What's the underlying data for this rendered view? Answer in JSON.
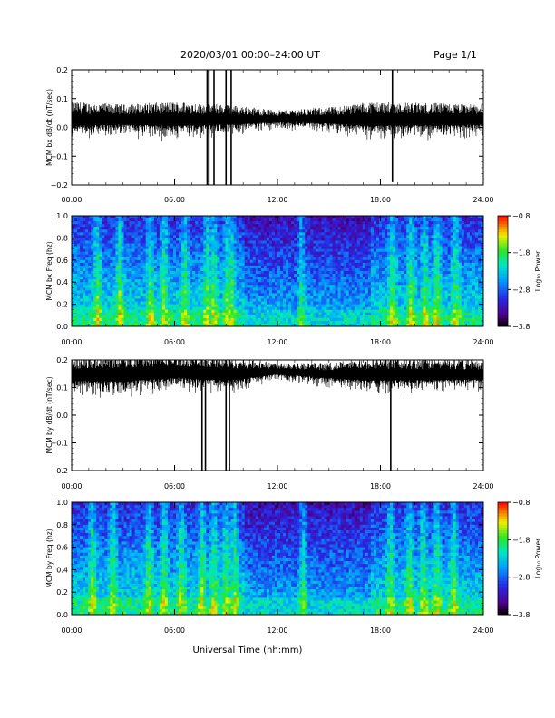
{
  "header": {
    "title": "2020/03/01  00:00–24:00 UT",
    "page": "Page 1/1"
  },
  "x_axis": {
    "label": "Universal Time (hh:mm)",
    "ticks": [
      "00:00",
      "06:00",
      "12:00",
      "18:00",
      "24:00"
    ]
  },
  "colorbar": {
    "label": "Log₁₀ Power",
    "ticks": [
      "−0.8",
      "−1.8",
      "−2.8",
      "−3.8"
    ]
  },
  "chart_data": [
    {
      "type": "line",
      "ylabel": "MCM bx dB/dt (nT/sec)",
      "xlim": [
        0,
        24
      ],
      "ylim": [
        -0.2,
        0.2
      ],
      "y_ticks": [
        "0.2",
        "0.1",
        "0.0",
        "−0.1",
        "−0.2"
      ],
      "x_unit": "hours UT",
      "baseline_segments": [
        {
          "x": [
            0,
            3,
            6,
            9,
            12,
            15,
            17.5,
            24
          ],
          "baseline": [
            0.03,
            0.03,
            0.03,
            0.03,
            0.03,
            0.03,
            0.03,
            0.03
          ],
          "amplitude": [
            0.06,
            0.05,
            0.06,
            0.05,
            0.03,
            0.04,
            0.06,
            0.05
          ]
        }
      ],
      "spikes": [
        {
          "x": 7.9,
          "min": -0.2,
          "max": 0.2
        },
        {
          "x": 8.0,
          "min": -0.2,
          "max": 0.2
        },
        {
          "x": 8.3,
          "min": -0.2,
          "max": 0.2
        },
        {
          "x": 9.0,
          "min": -0.2,
          "max": 0.2
        },
        {
          "x": 9.3,
          "min": -0.2,
          "max": 0.2
        },
        {
          "x": 18.7,
          "min": -0.19,
          "max": 0.2
        }
      ]
    },
    {
      "type": "heatmap",
      "ylabel": "MCM bx Freq (hz)",
      "xlim": [
        0,
        24
      ],
      "ylim": [
        0.0,
        1.0
      ],
      "y_ticks": [
        "1.0",
        "0.8",
        "0.6",
        "0.4",
        "0.2",
        "0.0"
      ],
      "z_label": "Log₁₀ Power",
      "zlim": [
        -3.8,
        -0.8
      ],
      "bright_columns_hours": [
        1.5,
        2.8,
        4.6,
        5.4,
        6.6,
        7.9,
        8.3,
        9.1,
        9.3,
        13.4,
        18.7,
        19.8,
        20.6,
        21.3,
        22.4
      ]
    },
    {
      "type": "line",
      "ylabel": "MCM by dB/dt (nT/sec)",
      "xlim": [
        0,
        24
      ],
      "ylim": [
        -0.2,
        0.2
      ],
      "y_ticks": [
        "0.2",
        "0.1",
        "0.0",
        "−0.1",
        "−0.2"
      ],
      "x_unit": "hours UT",
      "baseline_segments": [
        {
          "x": [
            0,
            3,
            6,
            9,
            12,
            15,
            17.5,
            24
          ],
          "baseline": [
            0.15,
            0.15,
            0.16,
            0.15,
            0.16,
            0.15,
            0.15,
            0.15
          ],
          "amplitude": [
            0.06,
            0.07,
            0.06,
            0.06,
            0.03,
            0.04,
            0.06,
            0.05
          ]
        }
      ],
      "spikes": [
        {
          "x": 7.6,
          "min": -0.2,
          "max": 0.2
        },
        {
          "x": 7.8,
          "min": -0.2,
          "max": 0.2
        },
        {
          "x": 9.0,
          "min": -0.2,
          "max": 0.2
        },
        {
          "x": 9.2,
          "min": -0.2,
          "max": 0.2
        },
        {
          "x": 18.6,
          "min": -0.2,
          "max": 0.2
        }
      ]
    },
    {
      "type": "heatmap",
      "ylabel": "MCM by Freq (hz)",
      "xlim": [
        0,
        24
      ],
      "ylim": [
        0.0,
        1.0
      ],
      "y_ticks": [
        "1.0",
        "0.8",
        "0.6",
        "0.4",
        "0.2",
        "0.0"
      ],
      "z_label": "Log₁₀ Power",
      "zlim": [
        -3.8,
        -0.8
      ],
      "bright_columns_hours": [
        1.2,
        2.4,
        4.5,
        5.4,
        6.4,
        7.6,
        8.3,
        9.0,
        9.5,
        13.5,
        18.6,
        19.7,
        20.5,
        21.3,
        22.3
      ]
    }
  ]
}
